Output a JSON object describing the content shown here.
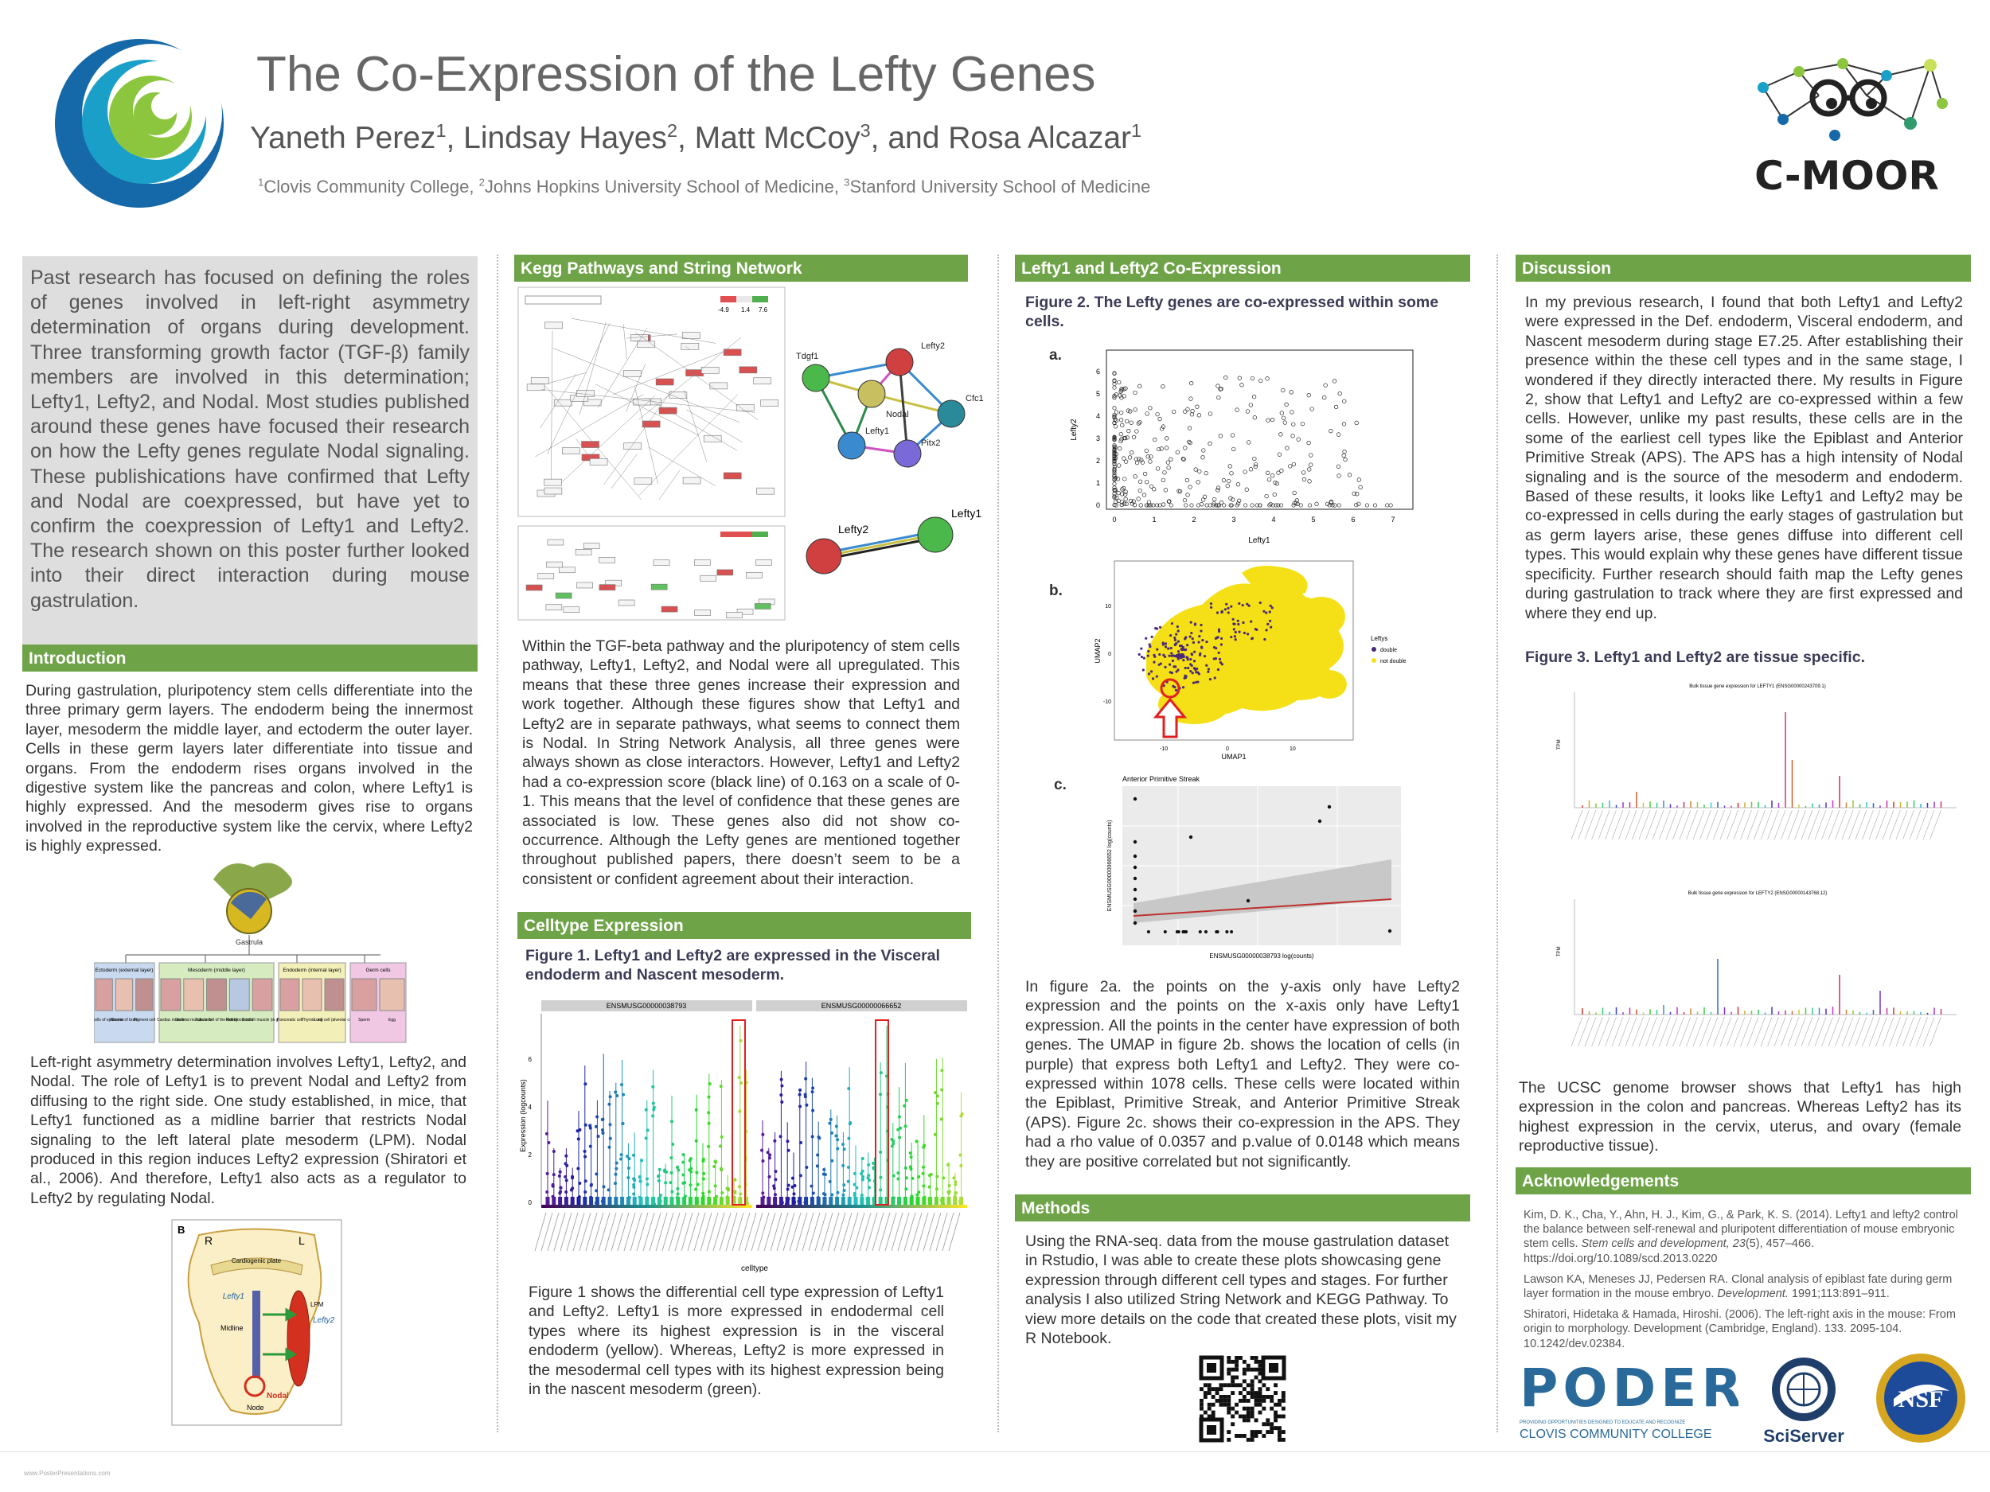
{
  "header": {
    "title": "The Co-Expression of the Lefty Genes",
    "authors": [
      {
        "name": "Yaneth Perez",
        "sup": "1"
      },
      {
        "name": "Lindsay Hayes",
        "sup": "2"
      },
      {
        "name": "Matt McCoy",
        "sup": "3"
      },
      {
        "name": "Rosa Alcazar",
        "sup": "1"
      }
    ],
    "author_sep": ", ",
    "author_and": ", and ",
    "affiliations": [
      {
        "sup": "1",
        "text": "Clovis Community College"
      },
      {
        "sup": "2",
        "text": "Johns Hopkins University School of Medicine"
      },
      {
        "sup": "3",
        "text": "Stanford University School of Medicine"
      }
    ],
    "cmoor_label": "C-MOOR"
  },
  "abstract": {
    "text": "Past research has focused on defining the roles of genes involved in left-right asymmetry determination of organs during development. Three transforming growth factor (TGF-β) family members are involved in this determination; Lefty1, Lefty2, and Nodal. Most studies published around these genes have focused their research on how the Lefty genes regulate Nodal signaling. These publishications have confirmed that Lefty and Nodal are coexpressed, but have yet to confirm the coexpression of Lefty1 and Lefty2. The research shown on this poster further looked into their direct interaction during mouse gastrulation."
  },
  "introduction": {
    "heading": "Introduction",
    "p1": "During gastrulation, pluripotency stem cells differentiate into the three primary germ layers. The endoderm being the innermost layer, mesoderm the middle layer, and ectoderm the outer layer. Cells in these germ layers later differentiate into tissue and organs. From the endoderm rises organs involved in the digestive system like the pancreas and colon, where Lefty1 is highly expressed. And the mesoderm gives rise to organs involved in the reproductive system like the cervix, where Lefty2 is highly expressed.",
    "p2": "Left-right asymmetry determination involves Lefty1, Lefty2, and Nodal. The role of Lefty1 is to prevent Nodal and Lefty2 from diffusing to the right side. One study established, in mice, that Lefty1 functioned as a midline barrier that restricts Nodal signaling to the left lateral plate mesoderm (LPM). Nodal produced in this region induces Lefty2 expression (Shiratori et al., 2006). And therefore, Lefty1 also acts as a regulator to Lefty2 by regulating Nodal.",
    "germ_fig": {
      "label": "Gastrula",
      "groups": [
        {
          "title": "Ectoderm (external layer)",
          "color": "#c9daf0",
          "cells": [
            "Skin cells of epidermis",
            "Neuron of brain",
            "Pigment cell"
          ]
        },
        {
          "title": "Mesoderm (middle layer)",
          "color": "#d6ecc0",
          "cells": [
            "Cardiac muscle",
            "Skeletal muscle cells",
            "Tubule cell of the kidney",
            "Red blood cells",
            "Smooth muscle (in gut)"
          ]
        },
        {
          "title": "Endoderm (internal layer)",
          "color": "#f3efb8",
          "cells": [
            "Pancreatic cell",
            "Thyroid cell",
            "Lung cell (alveolar cell)"
          ]
        },
        {
          "title": "Germ cells",
          "color": "#f0c8e4",
          "cells": [
            "Sperm",
            "Egg"
          ]
        }
      ]
    },
    "lr_fig": {
      "panel": "B",
      "right": "R",
      "left": "L",
      "cardiogenic": "Cardiogenic plate",
      "lefty1": "Lefty1",
      "lefty2": "Lefty2",
      "lpm": "LPM",
      "midline": "Midline",
      "nodal": "Nodal",
      "node": "Node"
    }
  },
  "kegg": {
    "heading": "Kegg Pathways and String Network",
    "legend_vals": [
      "-4.9",
      "1.4",
      "7.6"
    ],
    "string_nodes": [
      "Tdgf1",
      "Lefty2",
      "Nodal",
      "Cfc1",
      "Lefty1",
      "Pitx2"
    ],
    "pair_nodes": [
      "Lefty2",
      "Lefty1"
    ],
    "text": "Within the TGF-beta pathway and the pluripotency of stem cells pathway, Lefty1, Lefty2, and Nodal were all upregulated. This means that these three genes increase their expression and work together. Although these figures show that Lefty1 and Lefty2 are in separate pathways, what seems to connect them is Nodal. In String Network Analysis, all three genes were always shown as close interactors. However, Lefty1 and Lefty2 had a co-expression score (black line) of 0.163 on a scale of 0-1. This means that the level of confidence that these genes are associated is low. These genes also did not show co-occurrence. Although the Lefty genes are mentioned together throughout published papers, there doesn’t seem to be a consistent or confident agreement about their interaction."
  },
  "celltype": {
    "heading": "Celltype Expression",
    "caption": "Figure 1. Lefty1 and Lefty2 are expressed in the Visceral endoderm and Nascent mesoderm.",
    "panel_titles": [
      "ENSMUSG00000038793",
      "ENSMUSG00000066652"
    ],
    "ylabel": "Expression (logcounts)",
    "xlabel": "celltype",
    "yticks": [
      "0",
      "2",
      "4",
      "6"
    ],
    "text": "Figure 1 shows the differential cell type expression of Lefty1 and Lefty2. Lefty1 is more expressed in endodermal cell types where its highest expression is in the visceral endoderm (yellow). Whereas, Lefty2 is more expressed in the mesodermal cell types with its highest expression being in the nascent mesoderm (green)."
  },
  "coexp": {
    "heading": "Lefty1 and Lefty2 Co-Expression",
    "caption": "Figure 2. The Lefty genes are co-expressed within some cells.",
    "panel_a": "a.",
    "panel_b": "b.",
    "panel_c": "c.",
    "scatter": {
      "xlabel": "Lefty1",
      "ylabel": "Lefty2",
      "xticks": [
        "0",
        "1",
        "2",
        "3",
        "4",
        "5",
        "6",
        "7"
      ],
      "yticks": [
        "0",
        "1",
        "2",
        "3",
        "4",
        "5",
        "6"
      ]
    },
    "umap": {
      "xlabel": "UMAP1",
      "ylabel": "UMAP2",
      "legend_title": "Leftys",
      "legend_items": [
        "double",
        "not double"
      ],
      "xticks": [
        "-10",
        "0",
        "10"
      ],
      "yticks": [
        "10",
        "0",
        "-10"
      ]
    },
    "aps": {
      "title": "Anterior Primitive Streak",
      "xlabel": "ENSMUSG00000038793 log(counts)",
      "ylabel": "ENSMUSG00000066652 log(counts)"
    },
    "text": "In figure 2a. the points on the y-axis only have Lefty2 expression and the points on the x-axis only have Lefty1 expression. All the points in the center have expression of both genes. The UMAP in figure 2b. shows the location of cells (in purple) that express both Lefty1 and Lefty2. They were co-expressed within 1078 cells. These cells were located within the Epiblast, Primitive Streak, and Anterior Primitive Streak (APS). Figure 2c. shows their co-expression in the APS. They had a rho value of 0.0357 and p.value of 0.0148 which means they are positive correlated but not significantly."
  },
  "methods": {
    "heading": "Methods",
    "text": "Using the RNA-seq. data from the mouse gastrulation dataset in Rstudio, I was able to create these plots showcasing gene expression through different cell types and stages. For further analysis I also utilized String Network and KEGG Pathway. To view more details on the code that created these plots, visit my R Notebook."
  },
  "discussion": {
    "heading": "Discussion",
    "text": "In my previous research, I found that both Lefty1 and Lefty2 were expressed in the Def. endoderm, Visceral endoderm, and Nascent mesoderm during stage E7.25. After establishing their presence within the these cell types and in the same stage, I wondered if they directly interacted there. My results in Figure 2, show that Lefty1 and Lefty2 are co-expressed within a few cells. However, unlike my past results, these cells are in the some of the earliest cell types like the Epiblast and Anterior Primitive Streak (APS). The APS has a high intensity of Nodal signaling and is the source of the mesoderm and endoderm. Based of these results, it looks like Lefty1 and Lefty2 may be co-expressed in cells during the early stages of gastrulation but as germ layers arise, these genes diffuse into different cell types. This would explain why these genes have different tissue specificity. Further research should faith map the Lefty genes during gastrulation to track where they are first expressed and where they end up.",
    "fig3_caption": "Figure 3. Lefty1 and Lefty2 are tissue specific.",
    "fig3_title1": "Bulk tissue gene expression for LEFTY1 (ENSG00000243709.1)",
    "fig3_title2": "Bulk tissue gene expression for LEFTY2 (ENSG00000143768.12)",
    "fig3_ylabel": "TPM",
    "text2": "The UCSC genome browser shows that Lefty1 has high expression in the colon and pancreas. Whereas Lefty2 has its highest expression in the cervix, uterus, and ovary (female reproductive tissue)."
  },
  "acknowledgements": {
    "heading": "Acknowledgements",
    "refs": [
      {
        "pre": "Kim, D. K., Cha, Y., Ahn, H. J., Kim, G., & Park, K. S. (2014). Lefty1 and lefty2 control the balance between self-renewal and pluripotent differentiation of mouse embryonic stem cells. ",
        "em": "Stem cells and development, 23",
        "post": "(5), 457–466. https://doi.org/10.1089/scd.2013.0220"
      },
      {
        "pre": "Lawson KA, Meneses JJ, Pedersen RA. Clonal analysis of epiblast fate during germ layer formation in the mouse embryo. ",
        "em": "Development.",
        "post": " 1991;113:891–911."
      },
      {
        "pre": "Shiratori, Hidetaka & Hamada, Hiroshi. (2006). The left-right axis in the mouse: From origin to morphology. Development (Cambridge, England). 133. 2095-104. 10.1242/dev.02384.",
        "em": "",
        "post": ""
      }
    ],
    "poder_word": "PODER",
    "poder_tagline": "PROVIDING OPPORTUNITIES DESIGNED TO EDUCATE AND RECOGNIZE",
    "poder_college": "CLOVIS COMMUNITY COLLEGE",
    "sciserver": "SciServer",
    "nsf": "NSF"
  },
  "footer": {
    "text": "www.PosterPresentations.com"
  },
  "colors": {
    "bar": "#6ea447",
    "abstract_bg": "#dedede",
    "title": "#666666",
    "highlight": "#e02020"
  }
}
